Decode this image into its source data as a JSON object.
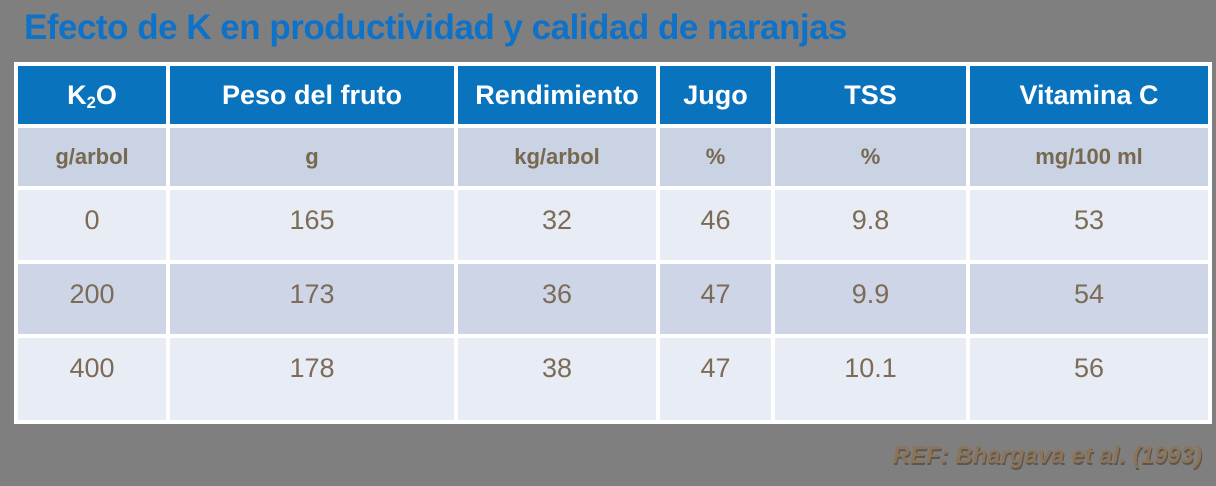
{
  "title": "Efecto de K en productividad y calidad de naranjas",
  "colors": {
    "background": "#7f7f7f",
    "title_blue": "#0e72c8",
    "header_blue": "#0a73bd",
    "unit_row_bg": "#c9d3e4",
    "row_light_bg": "#e8ecf5",
    "row_dark_bg": "#cdd5e6",
    "data_text": "#7c6b56",
    "reference_text": "#8c7459"
  },
  "table": {
    "columns": [
      {
        "label": "K₂O",
        "unit": "g/arbol"
      },
      {
        "label": "Peso del fruto",
        "unit": "g"
      },
      {
        "label": "Rendimiento",
        "unit": "kg/arbol"
      },
      {
        "label": "Jugo",
        "unit": "%"
      },
      {
        "label": "TSS",
        "unit": "%"
      },
      {
        "label": "Vitamina C",
        "unit": "mg/100 ml"
      }
    ],
    "rows": [
      [
        "0",
        "165",
        "32",
        "46",
        "9.8",
        "53"
      ],
      [
        "200",
        "173",
        "36",
        "47",
        "9.9",
        "54"
      ],
      [
        "400",
        "178",
        "38",
        "47",
        "10.1",
        "56"
      ]
    ]
  },
  "footer": {
    "reference": "REF: Bhargava et al. (1993)"
  }
}
